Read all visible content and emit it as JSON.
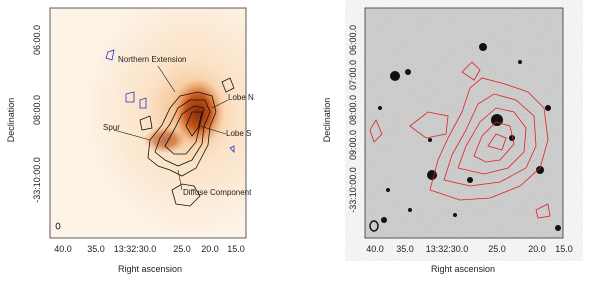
{
  "panels": [
    {
      "ylabel": "Declination",
      "xlabel": "Right ascension",
      "yticks": [
        "06:00.0",
        "08:00.0",
        "-33:10:00.0"
      ],
      "xticks": [
        "40.0",
        "35.0",
        "13:32:30.0",
        "25.0",
        "20.0",
        "15.0"
      ],
      "annotations": [
        "Northern Extension",
        "Lobe N",
        "Spur",
        "Lobe S",
        "Diffuse Component"
      ]
    },
    {
      "ylabel": "Declination",
      "xlabel": "Right ascension",
      "yticks": [
        "06:00.0",
        "07:00.0",
        "08:00.0",
        "09:00.0",
        "-33:10:00.0"
      ],
      "xticks": [
        "40.0",
        "35.0",
        "13:32:30.0",
        "25.0",
        "20.0",
        "15.0"
      ]
    }
  ]
}
